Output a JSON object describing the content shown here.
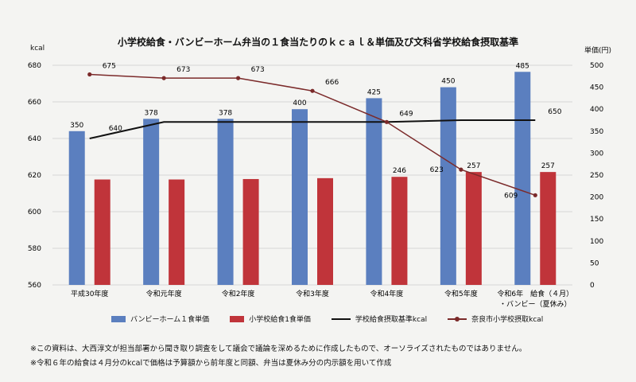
{
  "chart_data": {
    "type": "bar",
    "title": "小学校給食・バンビーホーム弁当の１食当たりのｋｃａｌ＆単価及び文科省学校給食摂取基準",
    "left_axis_unit": "kcal",
    "right_axis_unit": "単価(円)",
    "left_ylim": [
      560,
      680
    ],
    "left_ticks": [
      "560",
      "580",
      "600",
      "620",
      "640",
      "660",
      "680"
    ],
    "right_ylim": [
      0,
      500
    ],
    "right_ticks": [
      "0",
      "50",
      "100",
      "150",
      "200",
      "250",
      "300",
      "350",
      "400",
      "450",
      "500"
    ],
    "categories": [
      "平成30年度",
      "令和元年度",
      "令和2年度",
      "令和3年度",
      "令和4年度",
      "令和5年度",
      "令和6年　給食（４月）"
    ],
    "category_lines2": [
      "",
      "",
      "",
      "",
      "",
      "",
      "・バンビー（夏休み）"
    ],
    "series": [
      {
        "name": "バンビーホーム１食単価",
        "kind": "bar",
        "axis": "right",
        "color": "#5b7fbf",
        "values": [
          350,
          378,
          378,
          400,
          425,
          450,
          485
        ],
        "labels": [
          "350",
          "378",
          "378",
          "400",
          "425",
          "450",
          "485"
        ]
      },
      {
        "name": "小学校給食1食単価",
        "kind": "bar",
        "axis": "right",
        "color": "#c0343a",
        "values": [
          240,
          240,
          241,
          243,
          246,
          257,
          257
        ],
        "labels": [
          "",
          "",
          "",
          "",
          "246",
          "257",
          "257"
        ]
      },
      {
        "name": "学校給食摂取基準kcal",
        "kind": "line",
        "axis": "left",
        "color": "#111111",
        "values": [
          640,
          649,
          649,
          649,
          649,
          650,
          650
        ],
        "labels": [
          "640",
          "",
          "",
          "",
          "649",
          "",
          "650"
        ]
      },
      {
        "name": "奈良市小学校摂取kcal",
        "kind": "line",
        "axis": "left",
        "color": "#7b2a2a",
        "values": [
          675,
          673,
          673,
          666,
          649,
          623,
          609
        ],
        "labels": [
          "675",
          "673",
          "673",
          "666",
          "",
          "623",
          "609"
        ]
      }
    ]
  },
  "notes": [
    "※この資料は、大西淳文が担当部署から聞き取り調査をして議会で議論を深めるために作成したもので、オーソライズされたものではありません。",
    "※令和６年の給食は４月分のkcalで価格は予算額から前年度と同額、弁当は夏休み分の内示額を用いて作成"
  ]
}
